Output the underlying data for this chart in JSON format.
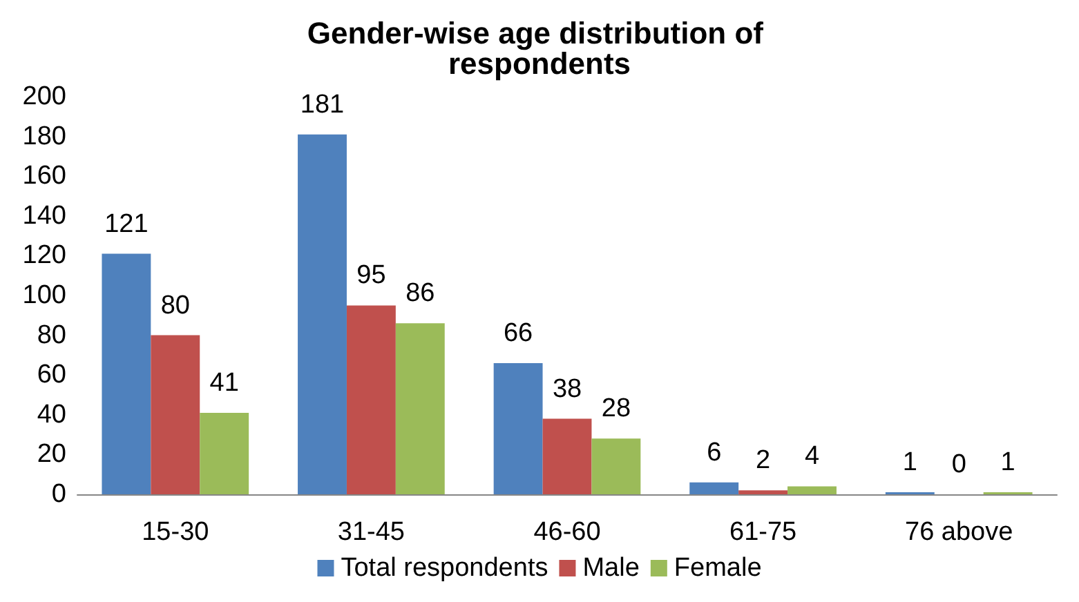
{
  "chart_data": {
    "type": "bar",
    "title": "Gender-wise age distribution of respondents",
    "categories": [
      "15-30",
      "31-45",
      "46-60",
      "61-75",
      "76 above"
    ],
    "series": [
      {
        "name": "Total respondents",
        "color": "#4f81bd",
        "values": [
          121,
          181,
          66,
          6,
          1
        ]
      },
      {
        "name": "Male",
        "color": "#c0504d",
        "values": [
          80,
          95,
          38,
          2,
          0
        ]
      },
      {
        "name": "Female",
        "color": "#9bbb59",
        "values": [
          41,
          86,
          28,
          4,
          1
        ]
      }
    ],
    "ylim": [
      0,
      200
    ],
    "yticks": [
      0,
      20,
      40,
      60,
      80,
      100,
      120,
      140,
      160,
      180,
      200
    ],
    "grid": false,
    "legend": "bottom",
    "data_labels": true
  }
}
